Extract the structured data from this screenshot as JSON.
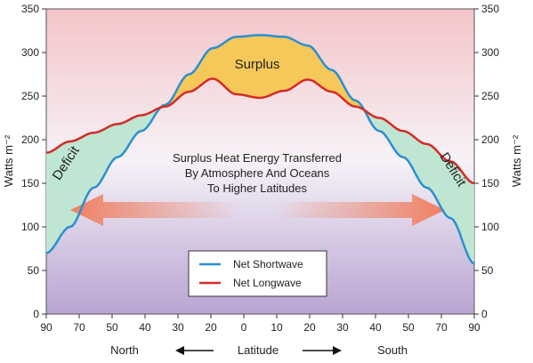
{
  "chart_data": {
    "type": "line",
    "xlabel": "Latitude",
    "xlabel_left": "North",
    "xlabel_right": "South",
    "ylabel_left": "Watts m⁻²",
    "ylabel_right": "Watts m⁻²",
    "ylim": [
      0,
      350
    ],
    "yticks": [
      0,
      50,
      100,
      150,
      200,
      250,
      300,
      350
    ],
    "xticks": [
      "90",
      "70",
      "50",
      "40",
      "30",
      "20",
      "0",
      "10",
      "20",
      "30",
      "40",
      "50",
      "70",
      "90"
    ],
    "x": [
      -90,
      -80,
      -70,
      -60,
      -50,
      -40,
      -30,
      -20,
      -10,
      0,
      10,
      20,
      30,
      40,
      50,
      60,
      70,
      80,
      90
    ],
    "grid": false,
    "legend_position": "bottom-center",
    "series": [
      {
        "name": "Net Shortwave",
        "color": "#2b8fd0",
        "values": [
          70,
          100,
          145,
          180,
          210,
          240,
          275,
          305,
          318,
          320,
          318,
          308,
          280,
          245,
          210,
          180,
          145,
          110,
          58
        ]
      },
      {
        "name": "Net Longwave",
        "color": "#d42b25",
        "values": [
          185,
          198,
          208,
          218,
          228,
          238,
          255,
          270,
          252,
          248,
          256,
          269,
          255,
          238,
          225,
          210,
          195,
          175,
          150
        ]
      }
    ],
    "annotations": {
      "surplus": "Surplus",
      "deficit_left": "Deficit",
      "deficit_right": "Deficit",
      "transfer_line1": "Surplus Heat Energy Transferred",
      "transfer_line2": "By Atmosphere And Oceans",
      "transfer_line3": "To Higher Latitudes"
    },
    "colors": {
      "surplus_fill": "#f6c85a",
      "deficit_fill": "#bfe6d2",
      "arrow": "#f08060",
      "background_top": "#f4c5c8",
      "background_mid": "#f6f2f7",
      "background_bottom": "#b9a4d2"
    }
  }
}
